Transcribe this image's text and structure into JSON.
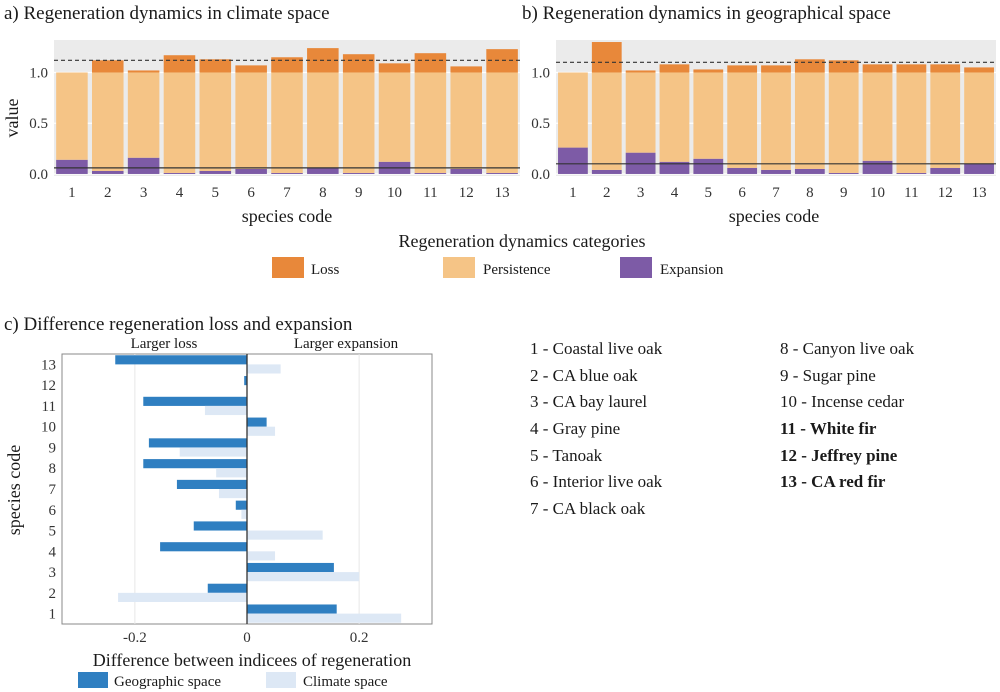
{
  "panel_a": {
    "title": "a) Regeneration dynamics in climate space",
    "xlabel": "species code",
    "ylabel": "value"
  },
  "panel_b": {
    "title": "b) Regeneration dynamics in  geographical space",
    "xlabel": "species code"
  },
  "panel_c": {
    "title": "c) Difference regeneration loss and expansion",
    "left_note": "Larger loss",
    "right_note": "Larger expansion",
    "xlabel": "Difference between indicees of regeneration",
    "ylabel": "species code"
  },
  "legend_top": {
    "title": "Regeneration dynamics categories",
    "items": [
      {
        "label": "Loss",
        "color": "#e8883a"
      },
      {
        "label": "Persistence",
        "color": "#f5c486"
      },
      {
        "label": "Expansion",
        "color": "#7d5ba6"
      }
    ]
  },
  "legend_bottom": {
    "items": [
      {
        "label": "Geographic space",
        "color": "#2f7fc1"
      },
      {
        "label": "Climate space",
        "color": "#dde8f5"
      }
    ]
  },
  "species_left": [
    {
      "text": "1 - Coastal live oak",
      "bold": false
    },
    {
      "text": "2 - CA blue oak",
      "bold": false
    },
    {
      "text": "3 - CA bay laurel",
      "bold": false
    },
    {
      "text": "4 - Gray pine",
      "bold": false
    },
    {
      "text": "5 - Tanoak",
      "bold": false
    },
    {
      "text": "6 - Interior live oak",
      "bold": false
    },
    {
      "text": "7 - CA black oak",
      "bold": false
    }
  ],
  "species_right": [
    {
      "text": "8  - Canyon live oak",
      "bold": false
    },
    {
      "text": "9  - Sugar pine",
      "bold": false
    },
    {
      "text": "10 - Incense cedar",
      "bold": false
    },
    {
      "text": "11 - White fir",
      "bold": true
    },
    {
      "text": "12 - Jeffrey pine",
      "bold": true
    },
    {
      "text": "13 - CA red fir",
      "bold": true
    }
  ],
  "chart_data": [
    {
      "type": "bar",
      "stacked": true,
      "title": "a) Regeneration dynamics in climate space",
      "xlabel": "species code",
      "ylabel": "value",
      "categories": [
        "1",
        "2",
        "3",
        "4",
        "5",
        "6",
        "7",
        "8",
        "9",
        "10",
        "11",
        "12",
        "13"
      ],
      "series": [
        {
          "name": "Expansion",
          "values": [
            0.14,
            0.03,
            0.16,
            0.01,
            0.03,
            0.05,
            0.01,
            0.06,
            0.01,
            0.12,
            0.01,
            0.05,
            0.01
          ]
        },
        {
          "name": "Persistence",
          "values": [
            0.86,
            0.97,
            0.84,
            0.99,
            0.97,
            0.95,
            0.99,
            0.94,
            0.99,
            0.88,
            0.99,
            0.95,
            0.99
          ]
        },
        {
          "name": "Loss",
          "values": [
            0.0,
            0.12,
            0.02,
            0.17,
            0.13,
            0.07,
            0.15,
            0.24,
            0.18,
            0.09,
            0.19,
            0.06,
            0.23
          ]
        }
      ],
      "yticks": [
        0.0,
        0.5,
        1.0
      ],
      "ylim": [
        -0.02,
        1.32
      ],
      "ref_lines": {
        "dashed": 1.12,
        "solid": 0.06
      },
      "grid": true
    },
    {
      "type": "bar",
      "stacked": true,
      "title": "b) Regeneration dynamics in  geographical space",
      "xlabel": "species code",
      "categories": [
        "1",
        "2",
        "3",
        "4",
        "5",
        "6",
        "7",
        "8",
        "9",
        "10",
        "11",
        "12",
        "13"
      ],
      "series": [
        {
          "name": "Expansion",
          "values": [
            0.26,
            0.04,
            0.21,
            0.12,
            0.15,
            0.06,
            0.04,
            0.05,
            0.01,
            0.13,
            0.01,
            0.06,
            0.1
          ]
        },
        {
          "name": "Persistence",
          "values": [
            0.74,
            0.96,
            0.79,
            0.88,
            0.85,
            0.94,
            0.96,
            0.95,
            0.99,
            0.87,
            0.99,
            0.94,
            0.9
          ]
        },
        {
          "name": "Loss",
          "values": [
            0.0,
            0.3,
            0.02,
            0.08,
            0.03,
            0.07,
            0.07,
            0.13,
            0.12,
            0.08,
            0.08,
            0.08,
            0.05
          ]
        }
      ],
      "yticks": [
        0.0,
        0.5,
        1.0
      ],
      "ylim": [
        -0.02,
        1.32
      ],
      "ref_lines": {
        "dashed": 1.1,
        "solid": 0.1
      },
      "grid": true
    },
    {
      "type": "bar",
      "orientation": "horizontal",
      "title": "c) Difference regeneration loss and expansion",
      "xlabel": "Difference between indicees of regeneration",
      "ylabel": "species code",
      "categories": [
        "1",
        "2",
        "3",
        "4",
        "5",
        "6",
        "7",
        "8",
        "9",
        "10",
        "11",
        "12",
        "13"
      ],
      "series": [
        {
          "name": "Geographic space",
          "values": [
            0.16,
            -0.07,
            0.155,
            -0.155,
            -0.095,
            -0.02,
            -0.125,
            -0.185,
            -0.175,
            0.035,
            -0.185,
            -0.005,
            -0.235
          ]
        },
        {
          "name": "Climate space",
          "values": [
            0.275,
            -0.23,
            0.2,
            0.05,
            0.135,
            -0.01,
            -0.05,
            -0.055,
            -0.12,
            0.05,
            -0.075,
            0.0,
            0.06
          ]
        }
      ],
      "xticks": [
        -0.2,
        0.0,
        0.2
      ],
      "xlim": [
        -0.33,
        0.33
      ],
      "grid": true
    }
  ]
}
